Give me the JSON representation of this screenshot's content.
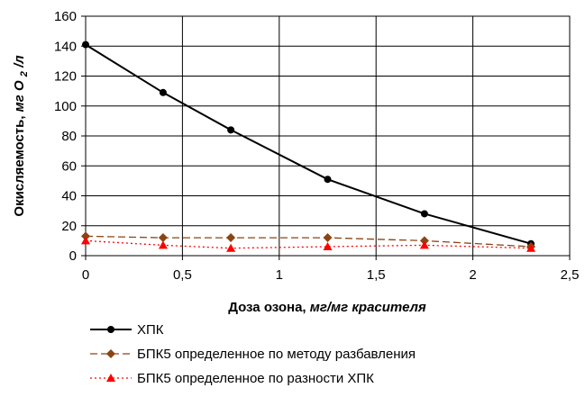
{
  "chart_data": {
    "type": "line",
    "xlabel": {
      "main": "Доза озона, ",
      "unit": "мг/мг красителя"
    },
    "ylabel": {
      "main": "Окисляемость, ",
      "unit_a": "мг О",
      "unit_sub": "2",
      "unit_b": "/л"
    },
    "xlim": [
      0,
      2.5
    ],
    "ylim": [
      0,
      160
    ],
    "x_ticks": [
      "0",
      "0,5",
      "1",
      "1,5",
      "2",
      "2,5"
    ],
    "y_ticks": [
      "0",
      "20",
      "40",
      "60",
      "80",
      "100",
      "120",
      "140",
      "160"
    ],
    "x_tick_values": [
      0,
      0.5,
      1,
      1.5,
      2,
      2.5
    ],
    "y_tick_values": [
      0,
      20,
      40,
      60,
      80,
      100,
      120,
      140,
      160
    ],
    "grid": true,
    "legend_position": "bottom",
    "series": [
      {
        "name": "ХПК",
        "color": "#000000",
        "dash": "solid",
        "marker": "circle",
        "x": [
          0,
          0.4,
          0.75,
          1.25,
          1.75,
          2.3
        ],
        "y": [
          141,
          109,
          84,
          51,
          28,
          8
        ]
      },
      {
        "name": "БПК5 определенное по методу разбавления",
        "color": "#8B4513",
        "dash": "dashed",
        "marker": "diamond",
        "x": [
          0,
          0.4,
          0.75,
          1.25,
          1.75,
          2.3
        ],
        "y": [
          13,
          12,
          12,
          12,
          10,
          6
        ]
      },
      {
        "name": "БПК5 определенное по разности ХПК",
        "color": "#FF0000",
        "dash": "dotted",
        "marker": "triangle",
        "x": [
          0,
          0.4,
          0.75,
          1.25,
          1.75,
          2.3
        ],
        "y": [
          10,
          7,
          5,
          6,
          7,
          5
        ]
      }
    ]
  }
}
